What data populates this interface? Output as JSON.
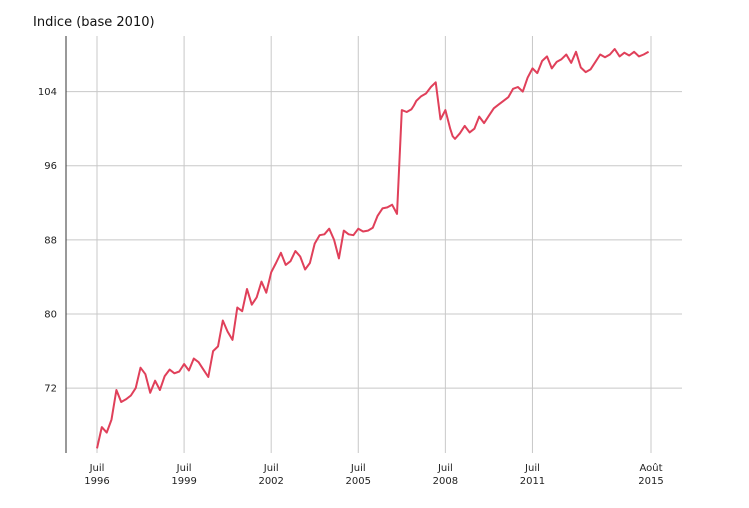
{
  "chart_data": {
    "type": "line",
    "title": "Indice (base 2010)",
    "xlabel": "",
    "ylabel": "",
    "x_range": [
      "1996-07",
      "2015-08"
    ],
    "ylim": [
      65,
      110
    ],
    "y_ticks": [
      72,
      80,
      88,
      96,
      104
    ],
    "x_ticks": [
      {
        "date": "1996-07",
        "month": "Juil",
        "year": "1996"
      },
      {
        "date": "1999-07",
        "month": "Juil",
        "year": "1999"
      },
      {
        "date": "2002-07",
        "month": "Juil",
        "year": "2002"
      },
      {
        "date": "2005-07",
        "month": "Juil",
        "year": "2005"
      },
      {
        "date": "2008-07",
        "month": "Juil",
        "year": "2008"
      },
      {
        "date": "2011-07",
        "month": "Juil",
        "year": "2011"
      },
      {
        "date": "2015-08",
        "month": "Août",
        "year": "2015"
      }
    ],
    "grid": true,
    "color": "#e0405a",
    "series": [
      {
        "x": [
          "1996-07",
          "1996-09",
          "1996-11",
          "1997-01",
          "1997-03",
          "1997-05",
          "1997-07",
          "1997-09",
          "1997-11",
          "1998-01",
          "1998-03",
          "1998-05",
          "1998-07",
          "1998-09",
          "1998-11",
          "1999-01",
          "1999-03",
          "1999-05",
          "1999-07",
          "1999-09",
          "1999-11",
          "2000-01",
          "2000-03",
          "2000-05",
          "2000-07",
          "2000-09",
          "2000-11",
          "2001-01",
          "2001-03",
          "2001-05",
          "2001-07",
          "2001-09",
          "2001-11",
          "2002-01",
          "2002-03",
          "2002-05",
          "2002-07",
          "2002-09",
          "2002-11",
          "2003-01",
          "2003-03",
          "2003-05",
          "2003-07",
          "2003-09",
          "2003-11",
          "2004-01",
          "2004-03",
          "2004-05",
          "2004-07",
          "2004-09",
          "2004-11",
          "2005-01",
          "2005-03",
          "2005-05",
          "2005-07",
          "2005-09",
          "2005-11",
          "2006-01",
          "2006-03",
          "2006-05",
          "2006-07",
          "2006-09",
          "2006-11",
          "2007-01",
          "2007-03",
          "2007-05",
          "2007-06",
          "2007-07",
          "2007-09",
          "2007-11",
          "2008-01",
          "2008-03",
          "2008-05",
          "2008-07",
          "2008-09",
          "2008-10",
          "2008-11",
          "2009-01",
          "2009-03",
          "2009-05",
          "2009-07",
          "2009-09",
          "2009-11",
          "2010-01",
          "2010-03",
          "2010-05",
          "2010-07",
          "2010-09",
          "2010-11",
          "2011-01",
          "2011-03",
          "2011-05",
          "2011-07",
          "2011-09",
          "2011-11",
          "2012-01",
          "2012-03",
          "2012-05",
          "2012-07",
          "2012-09",
          "2012-11",
          "2013-01",
          "2013-03",
          "2013-05",
          "2013-07",
          "2013-09",
          "2013-11",
          "2014-01",
          "2014-03",
          "2014-05",
          "2014-07",
          "2014-09",
          "2014-11",
          "2015-01",
          "2015-03",
          "2015-05",
          "2015-07"
        ],
        "values": [
          65.5,
          67.8,
          67.2,
          68.6,
          71.8,
          70.5,
          70.8,
          71.2,
          72.0,
          74.2,
          73.5,
          71.5,
          72.8,
          71.8,
          73.3,
          74.0,
          73.6,
          73.8,
          74.6,
          73.9,
          75.2,
          74.8,
          74.0,
          73.2,
          76.0,
          76.5,
          79.3,
          78.1,
          77.2,
          80.7,
          80.3,
          82.7,
          81.0,
          81.8,
          83.5,
          82.3,
          84.5,
          85.5,
          86.6,
          85.3,
          85.7,
          86.8,
          86.2,
          84.8,
          85.5,
          87.6,
          88.5,
          88.6,
          89.2,
          88.0,
          86.0,
          89.0,
          88.6,
          88.5,
          89.2,
          88.9,
          89.0,
          89.3,
          90.6,
          91.4,
          91.5,
          91.8,
          90.8,
          102.0,
          101.8,
          102.1,
          102.5,
          103.0,
          103.5,
          103.8,
          104.5,
          105.0,
          101.0,
          102.0,
          100.0,
          99.2,
          98.9,
          99.5,
          100.3,
          99.6,
          100.0,
          101.3,
          100.6,
          101.4,
          102.2,
          102.6,
          103.0,
          103.4,
          104.3,
          104.5,
          104.0,
          105.5,
          106.5,
          106.0,
          107.3,
          107.8,
          106.5,
          107.2,
          107.5,
          108.0,
          107.1,
          108.3,
          106.6,
          106.1,
          106.4,
          107.2,
          108.0,
          107.7,
          108.0,
          108.6,
          107.8,
          108.2,
          107.9,
          108.3,
          107.8,
          108.0,
          108.3
        ]
      }
    ]
  }
}
